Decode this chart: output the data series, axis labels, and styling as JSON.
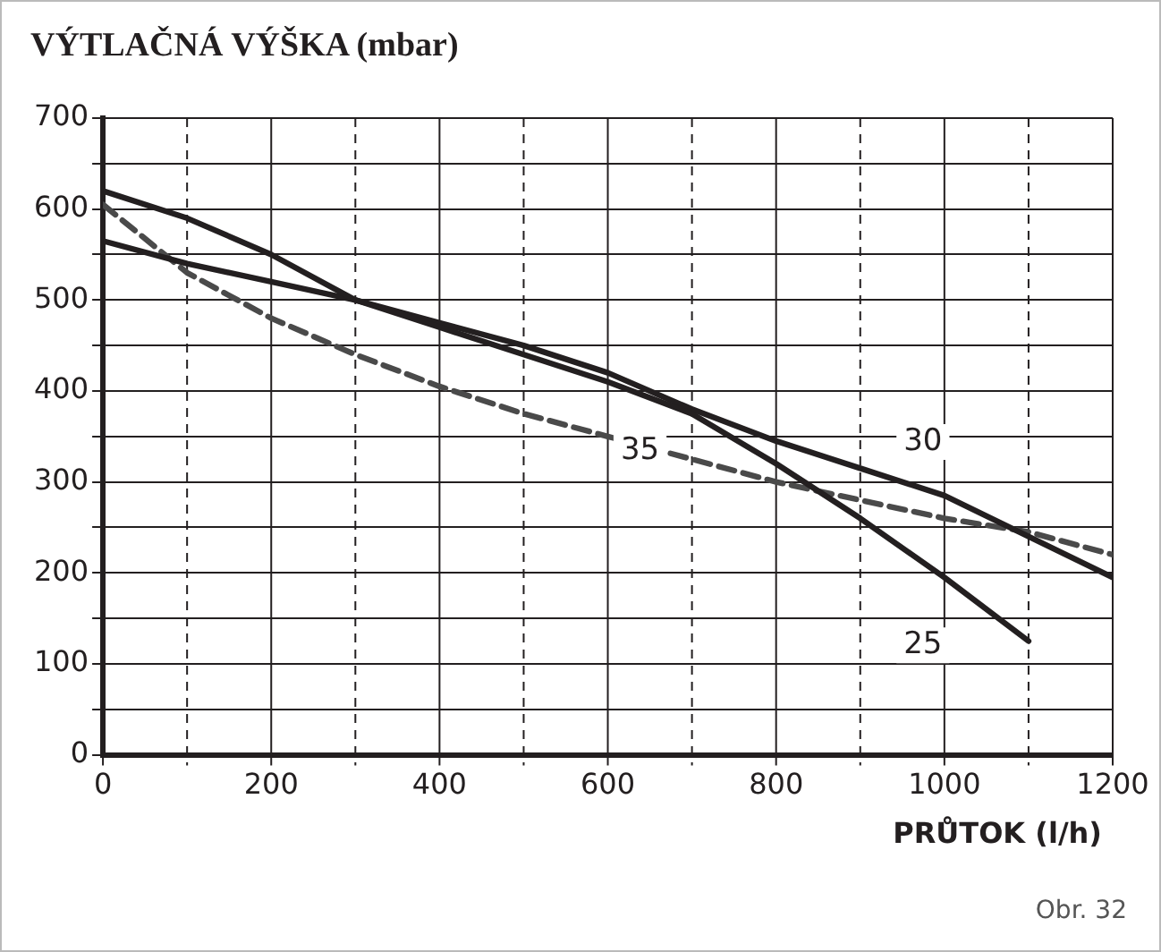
{
  "chart_data": {
    "type": "line",
    "title": "VÝTLAČNÁ VÝŠKA (mbar)",
    "xlabel": "PRŮTOK (l/h)",
    "annotations": [
      "Obr. 32"
    ],
    "xlim": [
      0,
      1200
    ],
    "xticks": [
      0,
      {
        "value": 100,
        "label": null
      },
      200,
      {
        "value": 300,
        "label": null
      },
      400,
      {
        "value": 500,
        "label": null
      },
      600,
      {
        "value": 700,
        "label": null
      },
      800,
      {
        "value": 900,
        "label": null
      },
      1000,
      {
        "value": 1100,
        "label": null
      },
      1200
    ],
    "ylim": [
      0,
      700
    ],
    "yticks": [
      0,
      {
        "value": 50,
        "label": null
      },
      100,
      {
        "value": 150,
        "label": null
      },
      200,
      {
        "value": 250,
        "label": null
      },
      300,
      {
        "value": 350,
        "label": null
      },
      400,
      {
        "value": 450,
        "label": null
      },
      500,
      {
        "value": 550,
        "label": null
      },
      600,
      {
        "value": 650,
        "label": null
      },
      700
    ],
    "grid": true,
    "legend": false,
    "marker": "none",
    "series": [
      {
        "name": "25",
        "color": "#231f20",
        "line_style": "solid",
        "x": [
          0,
          100,
          200,
          300,
          400,
          500,
          600,
          700,
          800,
          900,
          1000,
          1100
        ],
        "values": [
          620,
          590,
          550,
          500,
          470,
          440,
          410,
          375,
          320,
          260,
          195,
          125
        ]
      },
      {
        "name": "30",
        "color": "#231f20",
        "line_style": "solid",
        "x": [
          0,
          100,
          200,
          300,
          400,
          500,
          600,
          700,
          800,
          900,
          1000,
          1100,
          1200
        ],
        "values": [
          565,
          540,
          520,
          500,
          475,
          450,
          420,
          380,
          345,
          315,
          285,
          240,
          195
        ]
      },
      {
        "name": "35",
        "color": "#4a4a4a",
        "line_style": "dashed",
        "x": [
          0,
          100,
          200,
          300,
          400,
          500,
          600,
          700,
          800,
          900,
          1000,
          1100,
          1200
        ],
        "values": [
          605,
          530,
          480,
          440,
          405,
          375,
          350,
          325,
          300,
          280,
          260,
          245,
          220
        ]
      }
    ]
  }
}
